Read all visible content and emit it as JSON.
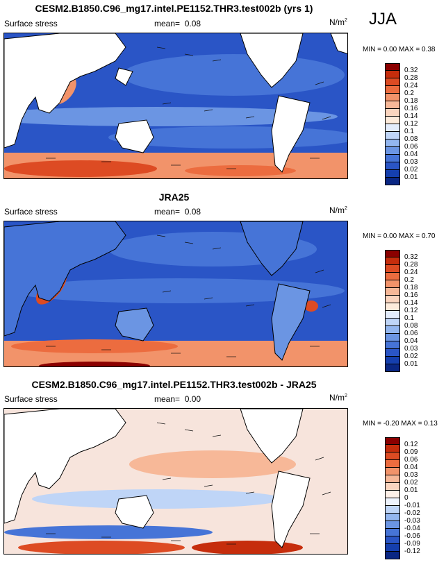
{
  "season": "JJA",
  "panels": [
    {
      "title": "CESM2.B1850.C96_mg17.intel.PE1152.THR3.test002b (yrs 1)",
      "variable": "Surface stress",
      "mean_label": "mean=",
      "mean_value": "0.08",
      "units": "N/m",
      "units_exp": "2",
      "minmax": "MIN =   0.00 MAX =   0.38",
      "levels": [
        "0.32",
        "0.28",
        "0.24",
        "0.2",
        "0.18",
        "0.16",
        "0.14",
        "0.12",
        "0.1",
        "0.08",
        "0.06",
        "0.04",
        "0.03",
        "0.02",
        "0.01"
      ],
      "colors": [
        "#8b0000",
        "#c62d0c",
        "#dd4b23",
        "#ec6c3f",
        "#f2936a",
        "#f7b898",
        "#fbd5bf",
        "#fdebdb",
        "#e3ecfb",
        "#bfd5f7",
        "#93b6ef",
        "#6b95e3",
        "#4674d7",
        "#2a55c6",
        "#153fae",
        "#0a2784"
      ]
    },
    {
      "title": "JRA25",
      "variable": "Surface stress",
      "mean_label": "mean=",
      "mean_value": "0.08",
      "units": "N/m",
      "units_exp": "2",
      "minmax": "MIN =   0.00 MAX =   0.70",
      "levels": [
        "0.32",
        "0.28",
        "0.24",
        "0.2",
        "0.18",
        "0.16",
        "0.14",
        "0.12",
        "0.1",
        "0.08",
        "0.06",
        "0.04",
        "0.03",
        "0.02",
        "0.01"
      ],
      "colors": [
        "#8b0000",
        "#c62d0c",
        "#dd4b23",
        "#ec6c3f",
        "#f2936a",
        "#f7b898",
        "#fbd5bf",
        "#fdebdb",
        "#e3ecfb",
        "#bfd5f7",
        "#93b6ef",
        "#6b95e3",
        "#4674d7",
        "#2a55c6",
        "#153fae",
        "#0a2784"
      ]
    },
    {
      "title": "CESM2.B1850.C96_mg17.intel.PE1152.THR3.test002b - JRA25",
      "variable": "Surface stress",
      "mean_label": "mean=",
      "mean_value": "0.00",
      "units": "N/m",
      "units_exp": "2",
      "minmax": "MIN =  -0.20 MAX =   0.13",
      "levels": [
        "0.12",
        "0.09",
        "0.06",
        "0.04",
        "0.03",
        "0.02",
        "0.01",
        "0",
        "-0.01",
        "-0.02",
        "-0.03",
        "-0.04",
        "-0.06",
        "-0.09",
        "-0.12"
      ],
      "colors": [
        "#8b0000",
        "#c62d0c",
        "#dd4b23",
        "#ec6c3f",
        "#f2936a",
        "#f7b898",
        "#fbd5bf",
        "#fdf0e8",
        "#eef3fc",
        "#bfd5f7",
        "#93b6ef",
        "#6b95e3",
        "#4674d7",
        "#2a55c6",
        "#153fae",
        "#0a2784"
      ]
    }
  ],
  "chart_data": [
    {
      "type": "heatmap",
      "title": "CESM2.B1850.C96_mg17.intel.PE1152.THR3.test002b (yrs 1)",
      "subtitle": "Surface stress",
      "mean": 0.08,
      "min": 0.0,
      "max": 0.38,
      "units": "N/m2",
      "levels": [
        0.01,
        0.02,
        0.03,
        0.04,
        0.06,
        0.08,
        0.1,
        0.12,
        0.14,
        0.16,
        0.18,
        0.2,
        0.24,
        0.28,
        0.32
      ]
    },
    {
      "type": "heatmap",
      "title": "JRA25",
      "subtitle": "Surface stress",
      "mean": 0.08,
      "min": 0.0,
      "max": 0.7,
      "units": "N/m2",
      "levels": [
        0.01,
        0.02,
        0.03,
        0.04,
        0.06,
        0.08,
        0.1,
        0.12,
        0.14,
        0.16,
        0.18,
        0.2,
        0.24,
        0.28,
        0.32
      ]
    },
    {
      "type": "heatmap",
      "title": "CESM2.B1850.C96_mg17.intel.PE1152.THR3.test002b - JRA25",
      "subtitle": "Surface stress",
      "mean": 0.0,
      "min": -0.2,
      "max": 0.13,
      "units": "N/m2",
      "levels": [
        -0.12,
        -0.09,
        -0.06,
        -0.04,
        -0.03,
        -0.02,
        -0.01,
        0,
        0.01,
        0.02,
        0.03,
        0.04,
        0.06,
        0.09,
        0.12
      ]
    }
  ]
}
